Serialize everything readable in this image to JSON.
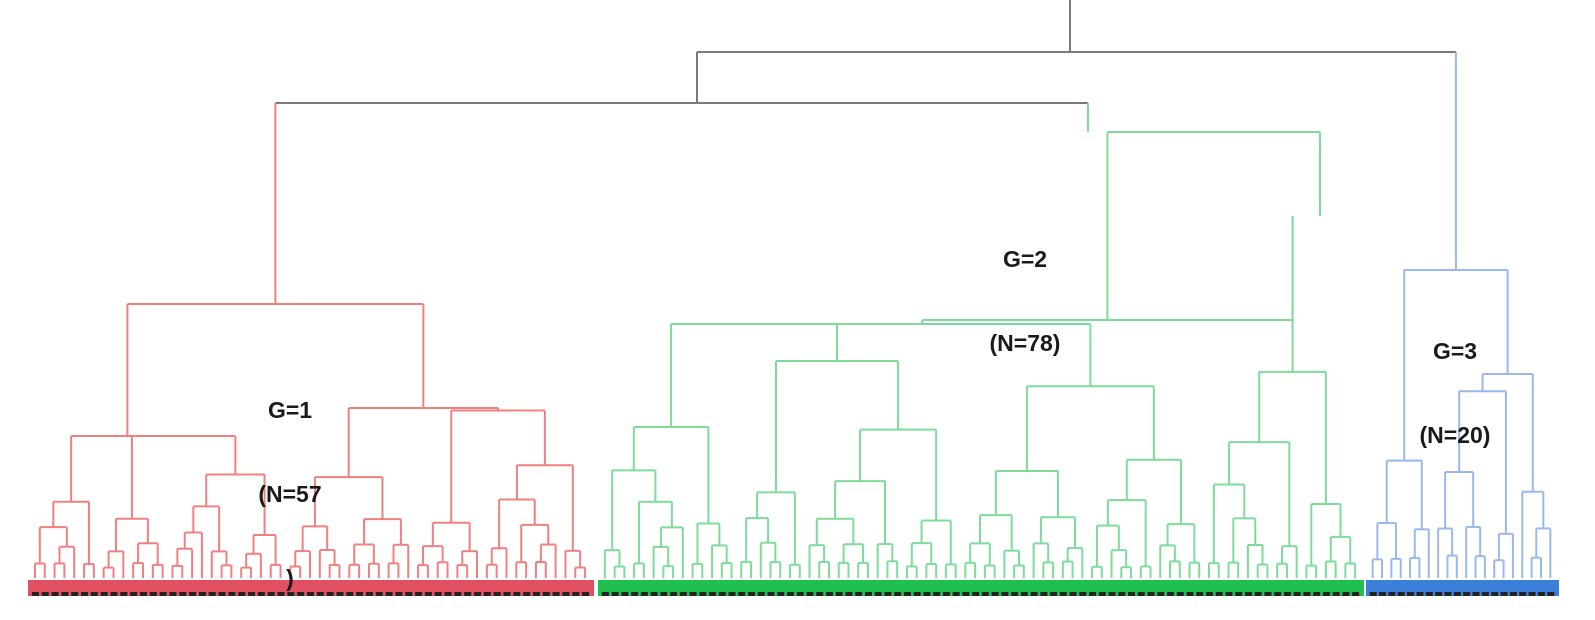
{
  "groups": [
    {
      "id": 1,
      "label_line1": "G=1",
      "label_line2": "(N=57",
      "label_line3": ")",
      "color": "#f08080",
      "bar_color": "#e05060",
      "leaf_count": 57
    },
    {
      "id": 2,
      "label_line1": "G=2",
      "label_line2": "(N=78)",
      "color": "#7ddc9a",
      "bar_color": "#20c050",
      "leaf_count": 78
    },
    {
      "id": 3,
      "label_line1": "G=3",
      "label_line2": "(N=20)",
      "color": "#9ab8ec",
      "bar_color": "#3a80d8",
      "leaf_count": 20
    }
  ],
  "colors": {
    "root_links": "#7a7a7a",
    "leaf_tick": "#222222"
  }
}
